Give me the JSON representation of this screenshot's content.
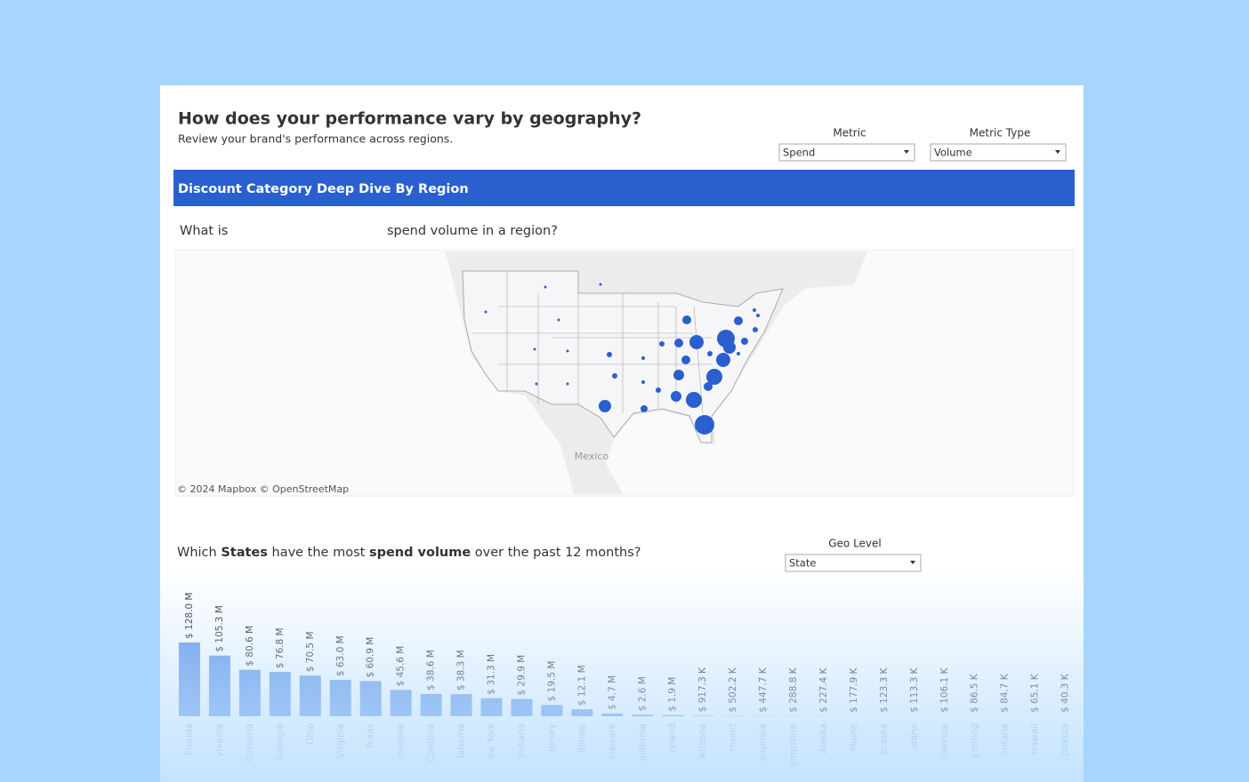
{
  "header": {
    "title": "How does your performance vary by geography?",
    "subtitle": "Review your brand's performance across regions."
  },
  "filters": {
    "metric": {
      "label": "Metric",
      "value": "Spend"
    },
    "metric_type": {
      "label": "Metric Type",
      "value": "Volume"
    },
    "geo_level": {
      "label": "Geo Level",
      "value": "State"
    }
  },
  "banner": "Discount Category Deep Dive By Region",
  "map_section": {
    "question_start": "What is",
    "question_end": "spend volume in a region?",
    "map_label": "Mexico",
    "attribution": "© 2024 Mapbox © OpenStreetMap"
  },
  "chart_question": [
    "Which ",
    "States",
    " have the most ",
    "spend volume",
    " over the past 12 months?"
  ],
  "chart_data": {
    "type": "bar",
    "color": "#6a9be8",
    "categories": [
      "Florida",
      "ylvania",
      "Carolina",
      "Georgia",
      "Ohio",
      "Virginia",
      "Texas",
      "nessee",
      "Carolina",
      "labama",
      "ew York",
      "Indiana",
      "Jersey",
      "Illinois",
      "elaware",
      "alifornia",
      "ryland",
      "Arizona",
      "rmont",
      "olumbia",
      "ampshire",
      "Alaska",
      "Maine",
      "braska",
      "Idaho",
      "Dakota",
      "yoming",
      "ontana",
      "Hawaii",
      "Dakota"
    ],
    "values": [
      128000000,
      105300000,
      80600000,
      76800000,
      70500000,
      63000000,
      60900000,
      45600000,
      38600000,
      38300000,
      31300000,
      29900000,
      19500000,
      12100000,
      4700000,
      2600000,
      1900000,
      917300,
      502200,
      447700,
      288800,
      227400,
      177900,
      123300,
      113300,
      106100,
      86500,
      84700,
      65100,
      40300
    ],
    "value_labels": [
      "$ 128.0 M",
      "$ 105.3 M",
      "$ 80.6 M",
      "$ 76.8 M",
      "$ 70.5 M",
      "$ 63.0 M",
      "$ 60.9 M",
      "$ 45.6 M",
      "$ 38.6 M",
      "$ 38.3 M",
      "$ 31.3 M",
      "$ 29.9 M",
      "$ 19.5 M",
      "$ 12.1 M",
      "$ 4.7 M",
      "$ 2.6 M",
      "$ 1.9 M",
      "$ 917.3 K",
      "$ 502.2 K",
      "$ 447.7 K",
      "$ 288.8 K",
      "$ 227.4 K",
      "$ 177.9 K",
      "$ 123.3 K",
      "$ 113.3 K",
      "$ 106.1 K",
      "$ 86.5 K",
      "$ 84.7 K",
      "$ 65.1 K",
      "$ 40.3 K"
    ]
  }
}
